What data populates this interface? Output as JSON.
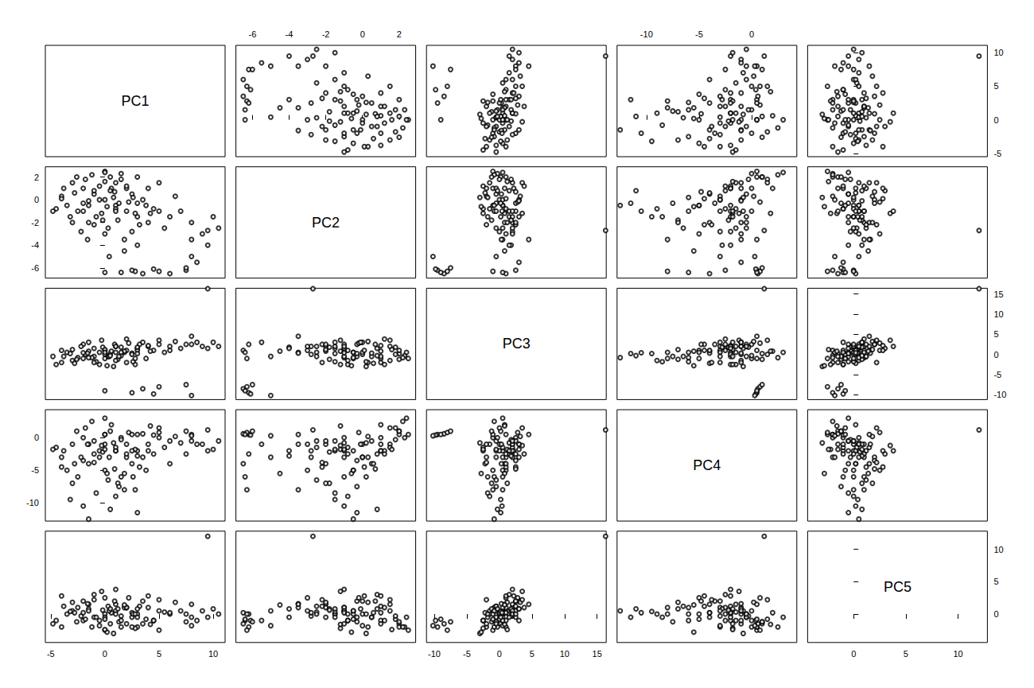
{
  "chart_data": {
    "type": "scatter_matrix",
    "marker": "open_circle",
    "color": "#000000",
    "grid": false,
    "variables": [
      {
        "name": "PC1",
        "lim": [
          -5.5,
          11.1
        ],
        "ticks": [
          -5,
          0,
          5,
          10
        ]
      },
      {
        "name": "PC2",
        "lim": [
          -6.9,
          2.9
        ],
        "ticks": [
          -6,
          -4,
          -2,
          0,
          2
        ]
      },
      {
        "name": "PC3",
        "lim": [
          -11.2,
          16.4
        ],
        "ticks": [
          -10,
          -5,
          0,
          5,
          10,
          15
        ]
      },
      {
        "name": "PC4",
        "lim": [
          -12.8,
          4.3
        ],
        "ticks": [
          -10,
          -5,
          0
        ]
      },
      {
        "name": "PC5",
        "lim": [
          -4.4,
          12.8
        ],
        "ticks": [
          0,
          5,
          10
        ]
      }
    ],
    "points": [
      [
        0,
        0,
        0,
        -1,
        0
      ],
      [
        1,
        -0.5,
        0.5,
        -2,
        0.5
      ],
      [
        -1,
        0.5,
        -0.5,
        -0.5,
        -0.5
      ],
      [
        2,
        -1,
        1,
        -3,
        1
      ],
      [
        -2,
        1,
        -1,
        0,
        -1
      ],
      [
        3,
        -1.5,
        1.5,
        -2,
        0
      ],
      [
        -3,
        1.5,
        -1.5,
        -1,
        0.5
      ],
      [
        0.5,
        2,
        0.2,
        1,
        -1.5
      ],
      [
        1.5,
        2.3,
        -0.3,
        0,
        -2
      ],
      [
        -1.5,
        -2,
        0.8,
        -4,
        1.5
      ],
      [
        4,
        -2,
        2,
        -1,
        1
      ],
      [
        -4,
        0.3,
        -2,
        -3,
        -2
      ],
      [
        5,
        -1,
        2.5,
        0,
        0.5
      ],
      [
        0,
        -3,
        1,
        -5,
        2.5
      ],
      [
        -2.5,
        -1,
        -0.8,
        -6,
        1
      ],
      [
        2.5,
        0.5,
        0.3,
        -4,
        -0.5
      ],
      [
        -0.5,
        1.2,
        -2.5,
        -2,
        -1
      ],
      [
        1,
        1.5,
        2,
        -1.5,
        1.5
      ],
      [
        3.5,
        0,
        3,
        -3,
        2
      ],
      [
        -3.5,
        -0.5,
        0.5,
        -5,
        0
      ],
      [
        6,
        -1.5,
        2,
        -0.5,
        0
      ],
      [
        0,
        2.5,
        -1,
        0.5,
        -2.5
      ],
      [
        1.2,
        -1.8,
        -1.2,
        -7,
        0.8
      ],
      [
        -1,
        0.8,
        1.5,
        -2.5,
        3
      ],
      [
        2,
        1,
        -2,
        -1,
        -1.5
      ],
      [
        4.5,
        -0.8,
        1,
        -2.5,
        -1
      ],
      [
        -2,
        -0.3,
        2.5,
        -3.5,
        2
      ],
      [
        0.8,
        0.2,
        -3,
        -0.8,
        -3
      ],
      [
        -1.8,
        1.8,
        0,
        1.5,
        -0.8
      ],
      [
        3,
        2,
        1,
        0.5,
        -2
      ],
      [
        -0.3,
        -1.2,
        3.5,
        -1.2,
        3.5
      ],
      [
        5.5,
        -2.5,
        0.5,
        -1.5,
        0.3
      ],
      [
        -4.5,
        -0.8,
        -2.5,
        -1.5,
        -1
      ],
      [
        0.3,
        -2.5,
        -0.5,
        -6.5,
        1.2
      ],
      [
        2.2,
        -0.2,
        2.8,
        0.8,
        2.5
      ],
      [
        -2.8,
        0.6,
        -2.2,
        -4,
        0.2
      ],
      [
        1.8,
        -3.5,
        0.5,
        -8,
        1
      ],
      [
        -0.8,
        -1.5,
        -1.8,
        -8.5,
        -0.5
      ],
      [
        7,
        -1,
        1.5,
        -0.8,
        0.5
      ],
      [
        -3,
        -2,
        1.2,
        -7,
        1.8
      ],
      [
        0.6,
        1,
        0.8,
        2,
        0.2
      ],
      [
        2.8,
        -1.2,
        -2.5,
        -1.8,
        -2.2
      ],
      [
        -1.2,
        2.2,
        -0.8,
        2.5,
        -2
      ],
      [
        4,
        1,
        2.2,
        -2,
        2.8
      ],
      [
        -2.2,
        -2.8,
        2,
        -3,
        -0.3
      ],
      [
        1,
        -0.8,
        -1.5,
        -9,
        0
      ],
      [
        3.2,
        -2.2,
        2.5,
        -4.5,
        1.2
      ],
      [
        -0.5,
        0,
        0.5,
        -3,
        -1.8
      ],
      [
        6.5,
        0.3,
        3.2,
        0.2,
        1.8
      ],
      [
        -3.8,
        1,
        -0.5,
        -2,
        1.2
      ],
      [
        1.5,
        1.8,
        1.8,
        -0.3,
        -0.3
      ],
      [
        0.2,
        -0.6,
        -2.8,
        -5.5,
        -2.8
      ],
      [
        2.5,
        -2.8,
        0,
        -2,
        0.2
      ],
      [
        -1.5,
        -0.1,
        3,
        -1,
        0.8
      ],
      [
        8,
        -2,
        2.5,
        -0.5,
        -0.5
      ],
      [
        -2.6,
        2,
        -1.2,
        1,
        -1.2
      ],
      [
        0.9,
        0.7,
        2.5,
        -4.8,
        2
      ],
      [
        3.8,
        -0.5,
        -1,
        -5,
        -0.8
      ],
      [
        -0.2,
        -1.8,
        1.8,
        -2.2,
        0.6
      ],
      [
        5,
        1.5,
        3.5,
        1.5,
        2.2
      ],
      [
        -3.2,
        -1.5,
        0.2,
        -9.5,
        0.4
      ],
      [
        1.3,
        -0.3,
        -0.5,
        -7.5,
        -1.2
      ],
      [
        2,
        1.2,
        3.8,
        -2.5,
        1
      ],
      [
        -1,
        -2.2,
        -2,
        -3.8,
        2.2
      ],
      [
        4.2,
        -1.2,
        0.8,
        1.8,
        -1.6
      ],
      [
        -4,
        0.1,
        1,
        -4.5,
        2.8
      ],
      [
        0,
        1.6,
        1.2,
        -1.8,
        -2.4
      ],
      [
        2.6,
        0.2,
        -1.8,
        -6,
        0
      ],
      [
        -1.6,
        -3.5,
        0.3,
        -1,
        1.6
      ],
      [
        3,
        -4,
        1.8,
        -2.8,
        0.8
      ],
      [
        1.8,
        -4.5,
        0.8,
        -5.5,
        1.4
      ],
      [
        0.4,
        -5,
        -0.5,
        -3,
        0.5
      ],
      [
        1,
        -1,
        2,
        -2,
        3.8
      ],
      [
        0,
        2.4,
        0.5,
        3,
        -0.5
      ],
      [
        -4.8,
        -1,
        -0.5,
        -1.8,
        -1.5
      ],
      [
        9,
        -3,
        2,
        -1,
        0.5
      ],
      [
        10.5,
        -2.5,
        2,
        -0.5,
        0
      ],
      [
        9.5,
        -4,
        1.5,
        -2,
        -0.5
      ],
      [
        8.5,
        -5.5,
        3,
        -1,
        -1
      ],
      [
        7.5,
        -6.2,
        2.5,
        -2.5,
        0
      ],
      [
        6,
        -6.5,
        1,
        -4,
        0.2
      ],
      [
        10,
        -1.5,
        3,
        -1.8,
        0.8
      ],
      [
        8,
        -3.5,
        4.5,
        0.5,
        1.5
      ],
      [
        1.5,
        -6.4,
        0.5,
        -6,
        -1
      ],
      [
        2.8,
        -6.3,
        -1,
        -8,
        0
      ],
      [
        2.5,
        -6.2,
        -9.5,
        0.5,
        -2
      ],
      [
        3.5,
        -6.5,
        -8.5,
        0.6,
        -1.5
      ],
      [
        4.5,
        -6.1,
        -9.8,
        0.4,
        -1
      ],
      [
        5,
        -6.3,
        -8,
        0.8,
        -2.5
      ],
      [
        8,
        -5,
        -10.2,
        0.3,
        -1.8
      ],
      [
        0,
        -6.4,
        -9,
        0.5,
        -0.8
      ],
      [
        7.5,
        -6,
        -7.5,
        1,
        -1.2
      ],
      [
        9.5,
        -2.7,
        16.3,
        1.2,
        12
      ],
      [
        -1.5,
        -0.5,
        -0.8,
        -12.5,
        0.5
      ],
      [
        0.5,
        0.8,
        -0.3,
        -11,
        0.8
      ],
      [
        3,
        -0.3,
        0.2,
        -11.5,
        -0.5
      ],
      [
        -2,
        -1,
        0.4,
        -10.5,
        0.2
      ]
    ]
  }
}
